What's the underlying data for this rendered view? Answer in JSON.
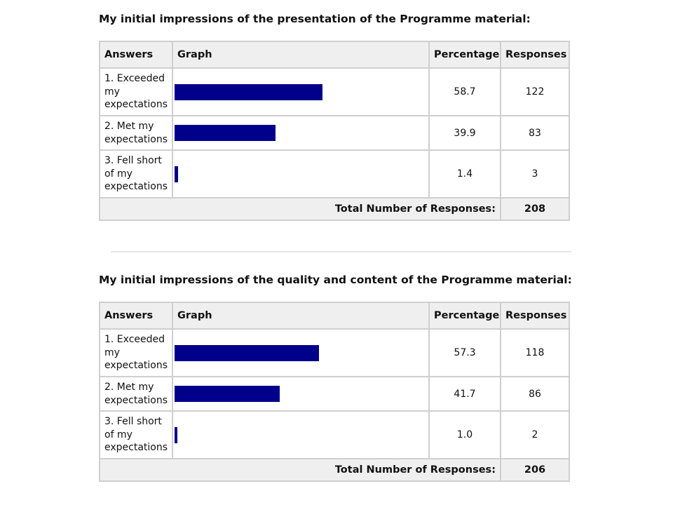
{
  "chart_data": [
    {
      "type": "bar",
      "title": "My initial impressions of the presentation of the Programme material:",
      "headers": [
        "Answers",
        "Graph",
        "Percentage",
        "Responses"
      ],
      "categories": [
        "1. Exceeded my expectations",
        "2. Met my expectations",
        "3. Fell short of my expectations"
      ],
      "percentages": [
        "58.7",
        "39.9",
        "1.4"
      ],
      "responses": [
        "122",
        "83",
        "3"
      ],
      "values": [
        58.7,
        39.9,
        1.4
      ],
      "total_label": "Total Number of Responses:",
      "total": "208",
      "bar_color": "#00008b"
    },
    {
      "type": "bar",
      "title": "My initial impressions of the quality and content of the Programme material:",
      "headers": [
        "Answers",
        "Graph",
        "Percentage",
        "Responses"
      ],
      "categories": [
        "1. Exceeded my expectations",
        "2. Met my expectations",
        "3. Fell short of my expectations"
      ],
      "percentages": [
        "57.3",
        "41.7",
        "1.0"
      ],
      "responses": [
        "118",
        "86",
        "2"
      ],
      "values": [
        57.3,
        41.7,
        1.0
      ],
      "total_label": "Total Number of Responses:",
      "total": "206",
      "bar_color": "#00008b"
    }
  ]
}
